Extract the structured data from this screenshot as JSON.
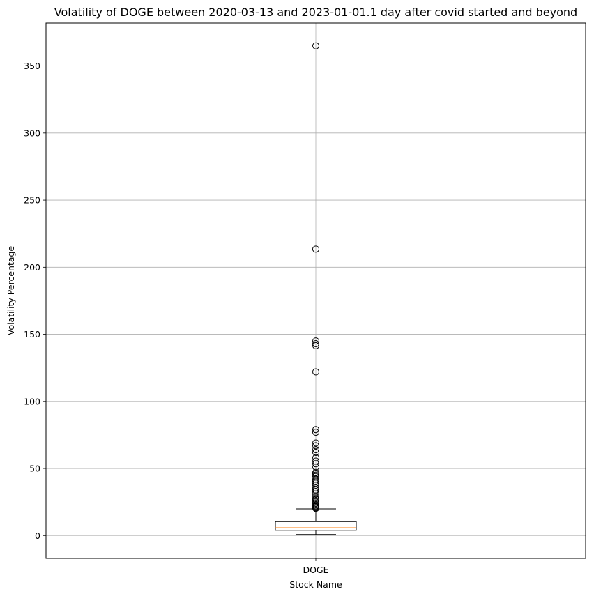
{
  "chart_data": {
    "type": "box",
    "title": "Volatility of DOGE between 2020-03-13 and 2023-01-01.1 day after covid started and beyond",
    "xlabel": "Stock Name",
    "ylabel": "Volatility Percentage",
    "categories": [
      "DOGE"
    ],
    "ylim": [
      -17,
      382
    ],
    "yticks": [
      0,
      50,
      100,
      150,
      200,
      250,
      300,
      350
    ],
    "grid": true,
    "box": {
      "whisker_low": 0.8,
      "q1": 3.9,
      "median": 5.8,
      "q3": 10.4,
      "whisker_high": 19.9,
      "outliers": [
        365,
        213.5,
        145,
        143,
        141.5,
        122,
        79,
        77,
        69,
        67,
        64,
        62,
        58,
        55.5,
        53.5,
        51,
        47,
        46,
        45,
        44,
        42,
        40.5,
        39,
        37.5,
        35.5,
        34,
        32.5,
        31,
        29.5,
        28,
        27,
        26,
        25,
        24,
        23,
        22.2,
        21.5,
        20.8,
        20.3
      ]
    },
    "colors": {
      "median": "#ff7f0e",
      "box": "#000000",
      "grid": "#b0b0b0"
    }
  }
}
